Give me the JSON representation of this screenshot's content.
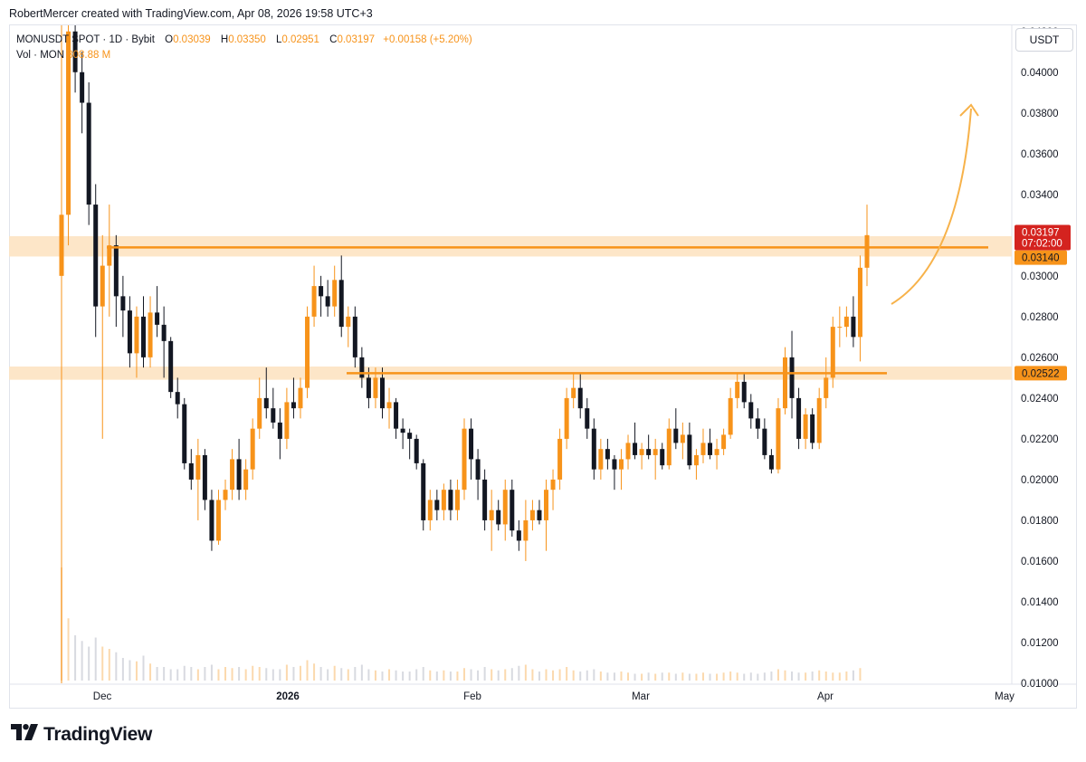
{
  "header": "RobertMercer created with TradingView.com, Apr 08, 2026 19:58 UTC+3",
  "legend": {
    "symbol": "MONUSDT SPOT · 1D · Bybit",
    "o_label": "O",
    "o": "0.03039",
    "h_label": "H",
    "h": "0.03350",
    "l_label": "L",
    "l": "0.02951",
    "c_label": "C",
    "c": "0.03197",
    "change": "+0.00158 (+5.20%)",
    "vol_label": "Vol · MON",
    "vol": "808.88 M"
  },
  "currency_button": "USDT",
  "brand": "TradingView",
  "colors": {
    "up": "#f7931a",
    "down": "#131722",
    "zone": "#fde3c2",
    "line": "#f7931a",
    "price_tag": "#d4231f"
  },
  "chart_data": {
    "type": "candlestick",
    "x_labels": [
      "Dec",
      "2026",
      "Feb",
      "Mar",
      "Apr",
      "May"
    ],
    "y_ticks": [
      "0.04200",
      "0.04000",
      "0.03800",
      "0.03600",
      "0.03400",
      "0.03200",
      "0.03000",
      "0.02800",
      "0.02600",
      "0.02400",
      "0.02200",
      "0.02000",
      "0.01800",
      "0.01600",
      "0.01400",
      "0.01200",
      "0.01000"
    ],
    "ylim": [
      0.01,
      0.0423
    ],
    "price_labels": [
      {
        "value": "0.03197",
        "sub": "07:02:00",
        "color": "#d4231f"
      },
      {
        "value": "0.03140",
        "color": "#f7931a"
      },
      {
        "value": "0.02522",
        "color": "#f7931a"
      }
    ],
    "resistance_levels": [
      0.0314,
      0.02522
    ],
    "zones": [
      [
        0.03095,
        0.03195
      ],
      [
        0.0249,
        0.02555
      ]
    ],
    "projection": "upward arrow",
    "candles": [
      [
        0.03,
        0.0425,
        0.01,
        0.033
      ],
      [
        0.033,
        0.043,
        0.0315,
        0.042
      ],
      [
        0.042,
        0.0425,
        0.039,
        0.04
      ],
      [
        0.04,
        0.041,
        0.037,
        0.0385
      ],
      [
        0.0385,
        0.0395,
        0.0325,
        0.0335
      ],
      [
        0.0335,
        0.0345,
        0.027,
        0.0285
      ],
      [
        0.0285,
        0.032,
        0.022,
        0.0305
      ],
      [
        0.0305,
        0.0335,
        0.028,
        0.0315
      ],
      [
        0.0315,
        0.032,
        0.0275,
        0.029
      ],
      [
        0.029,
        0.03,
        0.027,
        0.0283
      ],
      [
        0.0283,
        0.029,
        0.0255,
        0.0262
      ],
      [
        0.0262,
        0.0285,
        0.025,
        0.028
      ],
      [
        0.028,
        0.029,
        0.0255,
        0.026
      ],
      [
        0.026,
        0.029,
        0.0255,
        0.0282
      ],
      [
        0.0282,
        0.0295,
        0.027,
        0.0276
      ],
      [
        0.0276,
        0.0285,
        0.025,
        0.0268
      ],
      [
        0.0268,
        0.027,
        0.024,
        0.0243
      ],
      [
        0.0243,
        0.025,
        0.023,
        0.0237
      ],
      [
        0.0237,
        0.024,
        0.0205,
        0.0208
      ],
      [
        0.0208,
        0.0215,
        0.0195,
        0.02
      ],
      [
        0.02,
        0.022,
        0.018,
        0.0212
      ],
      [
        0.0212,
        0.0215,
        0.0185,
        0.019
      ],
      [
        0.019,
        0.0195,
        0.0165,
        0.017
      ],
      [
        0.017,
        0.0195,
        0.0168,
        0.019
      ],
      [
        0.019,
        0.02,
        0.0185,
        0.0195
      ],
      [
        0.0195,
        0.0215,
        0.019,
        0.021
      ],
      [
        0.021,
        0.022,
        0.019,
        0.0195
      ],
      [
        0.0195,
        0.021,
        0.019,
        0.0205
      ],
      [
        0.0205,
        0.023,
        0.02,
        0.0225
      ],
      [
        0.0225,
        0.025,
        0.022,
        0.024
      ],
      [
        0.024,
        0.0255,
        0.023,
        0.0235
      ],
      [
        0.0235,
        0.0245,
        0.0225,
        0.0228
      ],
      [
        0.0228,
        0.0235,
        0.021,
        0.022
      ],
      [
        0.022,
        0.0245,
        0.0215,
        0.0238
      ],
      [
        0.0238,
        0.025,
        0.023,
        0.0235
      ],
      [
        0.0235,
        0.025,
        0.023,
        0.0245
      ],
      [
        0.0245,
        0.0285,
        0.024,
        0.028
      ],
      [
        0.028,
        0.0305,
        0.0275,
        0.0295
      ],
      [
        0.0295,
        0.03,
        0.028,
        0.029
      ],
      [
        0.029,
        0.0298,
        0.028,
        0.0285
      ],
      [
        0.0285,
        0.0305,
        0.028,
        0.0298
      ],
      [
        0.0298,
        0.031,
        0.027,
        0.0275
      ],
      [
        0.0275,
        0.0285,
        0.0265,
        0.028
      ],
      [
        0.028,
        0.0285,
        0.0255,
        0.026
      ],
      [
        0.026,
        0.0265,
        0.0245,
        0.025
      ],
      [
        0.025,
        0.0255,
        0.0235,
        0.024
      ],
      [
        0.024,
        0.0255,
        0.0235,
        0.025
      ],
      [
        0.025,
        0.0255,
        0.023,
        0.0235
      ],
      [
        0.0235,
        0.0245,
        0.0225,
        0.0238
      ],
      [
        0.0238,
        0.024,
        0.022,
        0.0225
      ],
      [
        0.0225,
        0.023,
        0.0215,
        0.0223
      ],
      [
        0.0223,
        0.0225,
        0.021,
        0.022
      ],
      [
        0.022,
        0.0222,
        0.0205,
        0.0208
      ],
      [
        0.0208,
        0.021,
        0.0175,
        0.018
      ],
      [
        0.018,
        0.0195,
        0.0175,
        0.019
      ],
      [
        0.019,
        0.0195,
        0.018,
        0.0185
      ],
      [
        0.0185,
        0.0198,
        0.018,
        0.0195
      ],
      [
        0.0195,
        0.02,
        0.018,
        0.0185
      ],
      [
        0.0185,
        0.02,
        0.018,
        0.0195
      ],
      [
        0.0195,
        0.023,
        0.019,
        0.0225
      ],
      [
        0.0225,
        0.023,
        0.02,
        0.021
      ],
      [
        0.021,
        0.0215,
        0.019,
        0.02
      ],
      [
        0.02,
        0.0205,
        0.0175,
        0.018
      ],
      [
        0.018,
        0.0195,
        0.0165,
        0.0185
      ],
      [
        0.0185,
        0.019,
        0.0175,
        0.0178
      ],
      [
        0.0178,
        0.02,
        0.017,
        0.0195
      ],
      [
        0.0195,
        0.02,
        0.0172,
        0.0175
      ],
      [
        0.0175,
        0.018,
        0.0165,
        0.017
      ],
      [
        0.017,
        0.019,
        0.016,
        0.018
      ],
      [
        0.018,
        0.019,
        0.0175,
        0.0185
      ],
      [
        0.0185,
        0.019,
        0.0178,
        0.018
      ],
      [
        0.018,
        0.02,
        0.0165,
        0.0195
      ],
      [
        0.0195,
        0.0205,
        0.0185,
        0.02
      ],
      [
        0.02,
        0.0225,
        0.0195,
        0.022
      ],
      [
        0.022,
        0.0245,
        0.0215,
        0.024
      ],
      [
        0.024,
        0.0252,
        0.0235,
        0.0245
      ],
      [
        0.0245,
        0.0252,
        0.023,
        0.0235
      ],
      [
        0.0235,
        0.024,
        0.022,
        0.0225
      ],
      [
        0.0225,
        0.023,
        0.02,
        0.0205
      ],
      [
        0.0205,
        0.022,
        0.02,
        0.0215
      ],
      [
        0.0215,
        0.022,
        0.0205,
        0.021
      ],
      [
        0.021,
        0.0212,
        0.0195,
        0.0205
      ],
      [
        0.0205,
        0.0215,
        0.0195,
        0.021
      ],
      [
        0.021,
        0.0222,
        0.0205,
        0.0218
      ],
      [
        0.0218,
        0.0228,
        0.021,
        0.0212
      ],
      [
        0.0212,
        0.0218,
        0.0205,
        0.0215
      ],
      [
        0.0215,
        0.0222,
        0.021,
        0.0212
      ],
      [
        0.0212,
        0.022,
        0.02,
        0.0215
      ],
      [
        0.0215,
        0.0218,
        0.0205,
        0.0207
      ],
      [
        0.0207,
        0.023,
        0.0205,
        0.0225
      ],
      [
        0.0225,
        0.0235,
        0.0215,
        0.0218
      ],
      [
        0.0218,
        0.0228,
        0.021,
        0.0222
      ],
      [
        0.0222,
        0.0228,
        0.0205,
        0.0207
      ],
      [
        0.0207,
        0.0215,
        0.02,
        0.0212
      ],
      [
        0.0212,
        0.0225,
        0.0208,
        0.0218
      ],
      [
        0.0218,
        0.0225,
        0.021,
        0.0212
      ],
      [
        0.0212,
        0.022,
        0.0205,
        0.0215
      ],
      [
        0.0215,
        0.0225,
        0.0212,
        0.0222
      ],
      [
        0.0222,
        0.0245,
        0.022,
        0.024
      ],
      [
        0.024,
        0.0252,
        0.0235,
        0.0248
      ],
      [
        0.0248,
        0.0252,
        0.0235,
        0.0238
      ],
      [
        0.0238,
        0.0242,
        0.0225,
        0.023
      ],
      [
        0.023,
        0.0235,
        0.022,
        0.0225
      ],
      [
        0.0225,
        0.023,
        0.021,
        0.0212
      ],
      [
        0.0212,
        0.0215,
        0.0203,
        0.0205
      ],
      [
        0.0205,
        0.024,
        0.0203,
        0.0235
      ],
      [
        0.0235,
        0.0265,
        0.0232,
        0.026
      ],
      [
        0.026,
        0.0273,
        0.023,
        0.024
      ],
      [
        0.024,
        0.0245,
        0.0215,
        0.022
      ],
      [
        0.022,
        0.0235,
        0.0215,
        0.0232
      ],
      [
        0.0232,
        0.0235,
        0.0215,
        0.0218
      ],
      [
        0.0218,
        0.0245,
        0.0215,
        0.024
      ],
      [
        0.024,
        0.026,
        0.0235,
        0.025
      ],
      [
        0.025,
        0.028,
        0.0245,
        0.0275
      ],
      [
        0.0275,
        0.0285,
        0.0265,
        0.0275
      ],
      [
        0.0275,
        0.0285,
        0.027,
        0.028
      ],
      [
        0.028,
        0.029,
        0.0265,
        0.027
      ],
      [
        0.027,
        0.031,
        0.0258,
        0.0304
      ],
      [
        0.0304,
        0.0335,
        0.0295,
        0.032
      ]
    ],
    "volumes": [
      1.0,
      0.55,
      0.4,
      0.35,
      0.3,
      0.38,
      0.3,
      0.28,
      0.25,
      0.2,
      0.18,
      0.17,
      0.22,
      0.15,
      0.12,
      0.12,
      0.1,
      0.1,
      0.13,
      0.12,
      0.1,
      0.12,
      0.14,
      0.1,
      0.12,
      0.11,
      0.12,
      0.1,
      0.13,
      0.12,
      0.11,
      0.1,
      0.1,
      0.14,
      0.12,
      0.13,
      0.18,
      0.15,
      0.12,
      0.1,
      0.13,
      0.11,
      0.1,
      0.12,
      0.14,
      0.1,
      0.09,
      0.08,
      0.1,
      0.09,
      0.08,
      0.08,
      0.1,
      0.12,
      0.09,
      0.08,
      0.09,
      0.08,
      0.08,
      0.11,
      0.1,
      0.09,
      0.12,
      0.1,
      0.09,
      0.1,
      0.11,
      0.13,
      0.14,
      0.1,
      0.08,
      0.1,
      0.09,
      0.1,
      0.12,
      0.09,
      0.08,
      0.09,
      0.1,
      0.08,
      0.07,
      0.07,
      0.08,
      0.07,
      0.06,
      0.06,
      0.07,
      0.06,
      0.07,
      0.07,
      0.06,
      0.07,
      0.06,
      0.06,
      0.07,
      0.06,
      0.06,
      0.07,
      0.08,
      0.07,
      0.06,
      0.07,
      0.06,
      0.07,
      0.08,
      0.1,
      0.09,
      0.08,
      0.07,
      0.07,
      0.08,
      0.09,
      0.08,
      0.07,
      0.07,
      0.08,
      0.09,
      0.11
    ]
  }
}
